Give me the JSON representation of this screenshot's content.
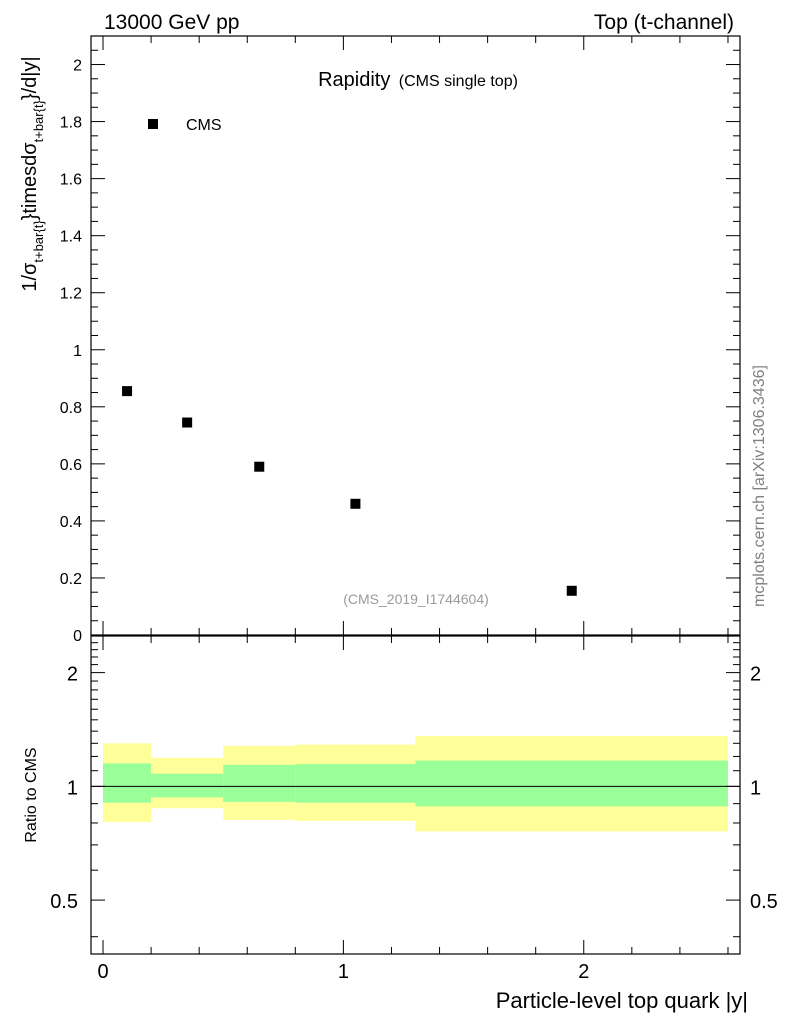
{
  "header": {
    "energy_label": "13000 GeV pp",
    "process_label": "Top (t-channel)"
  },
  "side_label": "mcplots.cern.ch [arXiv:1306.3436]",
  "chart_data": [
    {
      "type": "scatter",
      "title": "Rapidity",
      "subtitle": "(CMS single top)",
      "analysis_label": "(CMS_2019_I1744604)",
      "ylabel": "1/σt+bar{t}}timesdσt+bar{t}}/d|y|",
      "xlabel": "",
      "xlim": [
        -0.05,
        2.65
      ],
      "ylim": [
        0,
        2.1
      ],
      "yticks": [
        0.2,
        0.4,
        0.6,
        0.8,
        1,
        1.2,
        1.4,
        1.6,
        1.8,
        2
      ],
      "ytick_labels": [
        "0.2",
        "0.4",
        "0.6",
        "0.8",
        "1",
        "1.2",
        "1.4",
        "1.6",
        "1.8",
        "2"
      ],
      "y_origin_label": "0",
      "legend": {
        "placement": "top-left",
        "entries": [
          "CMS"
        ]
      },
      "series": [
        {
          "name": "CMS",
          "marker": "square",
          "color": "#000000",
          "x": [
            0.1,
            0.35,
            0.65,
            1.05,
            1.95
          ],
          "y": [
            0.855,
            0.745,
            0.59,
            0.46,
            0.155
          ]
        }
      ]
    },
    {
      "type": "area",
      "ylabel": "Ratio to CMS",
      "xlabel": "Particle-level top quark |y|",
      "xlim": [
        -0.05,
        2.65
      ],
      "ylim": [
        0.36,
        2.5
      ],
      "log_y": true,
      "yticks": [
        0.5,
        1,
        2
      ],
      "ytick_labels": [
        "0.5",
        "1",
        "2"
      ],
      "xticks": [
        0,
        1,
        2
      ],
      "xtick_labels": [
        "0",
        "1",
        "2"
      ],
      "reference_line": 1,
      "bins": [
        {
          "lo": 0.0,
          "hi": 0.2,
          "stat_lo": 0.905,
          "stat_hi": 1.15,
          "tot_lo": 0.805,
          "tot_hi": 1.3
        },
        {
          "lo": 0.2,
          "hi": 0.5,
          "stat_lo": 0.935,
          "stat_hi": 1.08,
          "tot_lo": 0.875,
          "tot_hi": 1.19
        },
        {
          "lo": 0.5,
          "hi": 0.8,
          "stat_lo": 0.91,
          "stat_hi": 1.14,
          "tot_lo": 0.815,
          "tot_hi": 1.28
        },
        {
          "lo": 0.8,
          "hi": 1.3,
          "stat_lo": 0.905,
          "stat_hi": 1.145,
          "tot_lo": 0.81,
          "tot_hi": 1.29
        },
        {
          "lo": 1.3,
          "hi": 2.6,
          "stat_lo": 0.885,
          "stat_hi": 1.17,
          "tot_lo": 0.76,
          "tot_hi": 1.36
        }
      ],
      "colors": {
        "stat_band": "#99ff99",
        "total_band": "#ffff99",
        "line": "#000000"
      }
    }
  ]
}
